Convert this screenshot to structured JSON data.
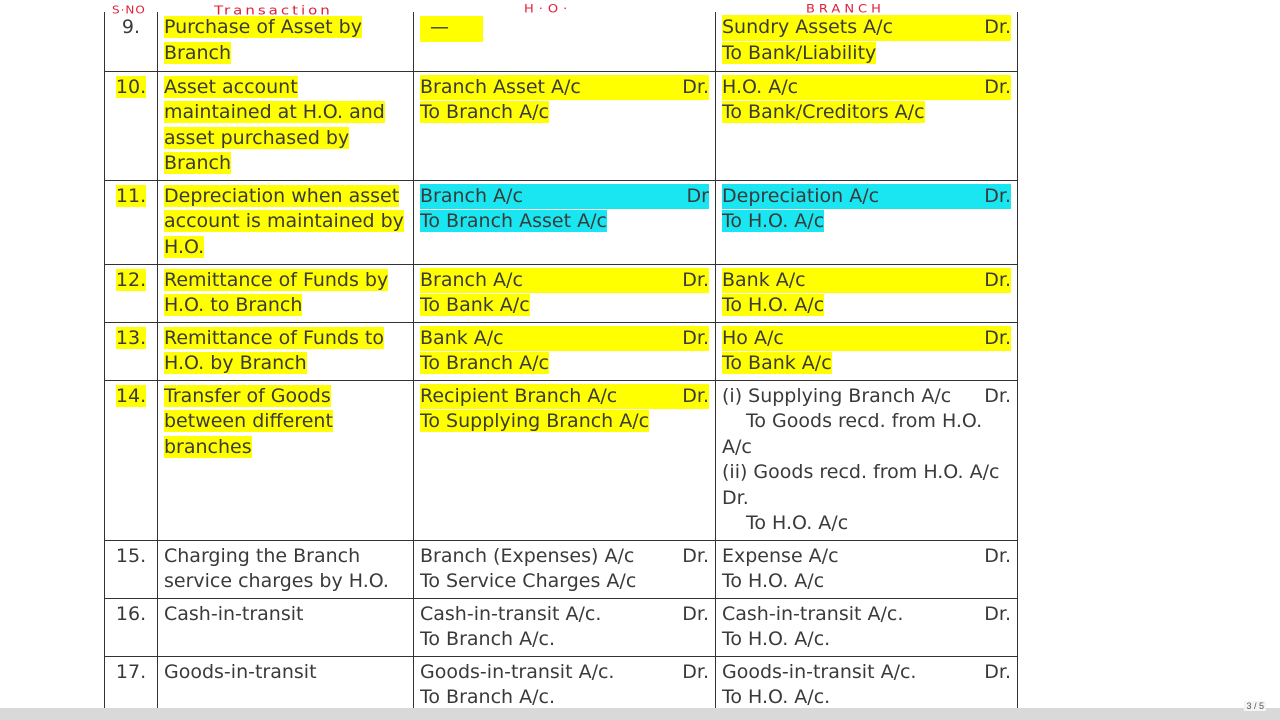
{
  "annotations": {
    "sno": "S·NO",
    "transaction": "Transaction",
    "ho": "H·O·",
    "branch": "BRANCH"
  },
  "rows": [
    {
      "no": "9.",
      "transaction": "Purchase of Asset by Branch",
      "ho": {
        "dash": "—"
      },
      "branch": {
        "debit": "Sundry Assets A/c",
        "dr": "Dr.",
        "credit": "To Bank/Liability"
      }
    },
    {
      "no": "10.",
      "transaction": "Asset account maintained at H.O. and asset purchased by Branch",
      "ho": {
        "debit": "Branch Asset A/c",
        "dr": "Dr.",
        "credit": "To Branch A/c"
      },
      "branch": {
        "debit": "H.O. A/c",
        "dr": "Dr.",
        "credit": "To Bank/Creditors A/c"
      }
    },
    {
      "no": "11.",
      "transaction": "Depreciation when asset account is maintained by H.O.",
      "ho": {
        "debit": "Branch A/c",
        "dr": "Dr",
        "credit": "To Branch Asset A/c"
      },
      "branch": {
        "debit": "Depreciation A/c",
        "dr": "Dr.",
        "credit": "To H.O. A/c"
      }
    },
    {
      "no": "12.",
      "transaction": "Remittance of Funds by H.O. to Branch",
      "ho": {
        "debit": "Branch A/c",
        "dr": "Dr.",
        "credit": "To Bank A/c"
      },
      "branch": {
        "debit": "Bank A/c",
        "dr": "Dr.",
        "credit": "To H.O. A/c"
      }
    },
    {
      "no": "13.",
      "transaction": "Remittance of Funds to H.O. by Branch",
      "ho": {
        "debit": "Bank A/c",
        "dr": "Dr.",
        "credit": "To Branch A/c"
      },
      "branch": {
        "debit": "Ho A/c",
        "dr": "Dr.",
        "credit": "To Bank A/c"
      }
    },
    {
      "no": "14.",
      "transaction": "Transfer of Goods between different branches",
      "ho": {
        "debit": "Recipient Branch A/c",
        "dr": "Dr.",
        "credit": "To Supplying Branch A/c"
      },
      "branch": {
        "line1": "(i) Supplying Branch A/c",
        "dr1": "Dr.",
        "line2": "To Goods recd. from H.O.",
        "line3": "A/c",
        "line4": "(ii) Goods recd. from H.O. A/c",
        "line5": "Dr.",
        "line6": "To H.O. A/c"
      }
    },
    {
      "no": "15.",
      "transaction": "Charging the Branch service charges by H.O.",
      "ho": {
        "debit": "Branch (Expenses) A/c",
        "dr": "Dr.",
        "credit": "To Service Charges A/c"
      },
      "branch": {
        "debit": "Expense A/c",
        "dr": "Dr.",
        "credit": "To H.O. A/c"
      }
    },
    {
      "no": "16.",
      "transaction": "Cash-in-transit",
      "ho": {
        "debit": "Cash-in-transit A/c.",
        "dr": "Dr.",
        "credit": "To Branch A/c."
      },
      "branch": {
        "debit": "Cash-in-transit A/c.",
        "dr": "Dr.",
        "credit": "To H.O. A/c."
      }
    },
    {
      "no": "17.",
      "transaction": "Goods-in-transit",
      "ho": {
        "debit": "Goods-in-transit A/c.",
        "dr": "Dr.",
        "credit": "To Branch A/c."
      },
      "branch": {
        "debit": "Goods-in-transit A/c.",
        "dr": "Dr.",
        "credit": "To H.O. A/c."
      }
    }
  ],
  "page_indicator": "3 / 5",
  "colors": {
    "highlight_yellow": "#ffff00",
    "highlight_cyan": "#19e6f0",
    "annotation_red": "#e0203a"
  }
}
